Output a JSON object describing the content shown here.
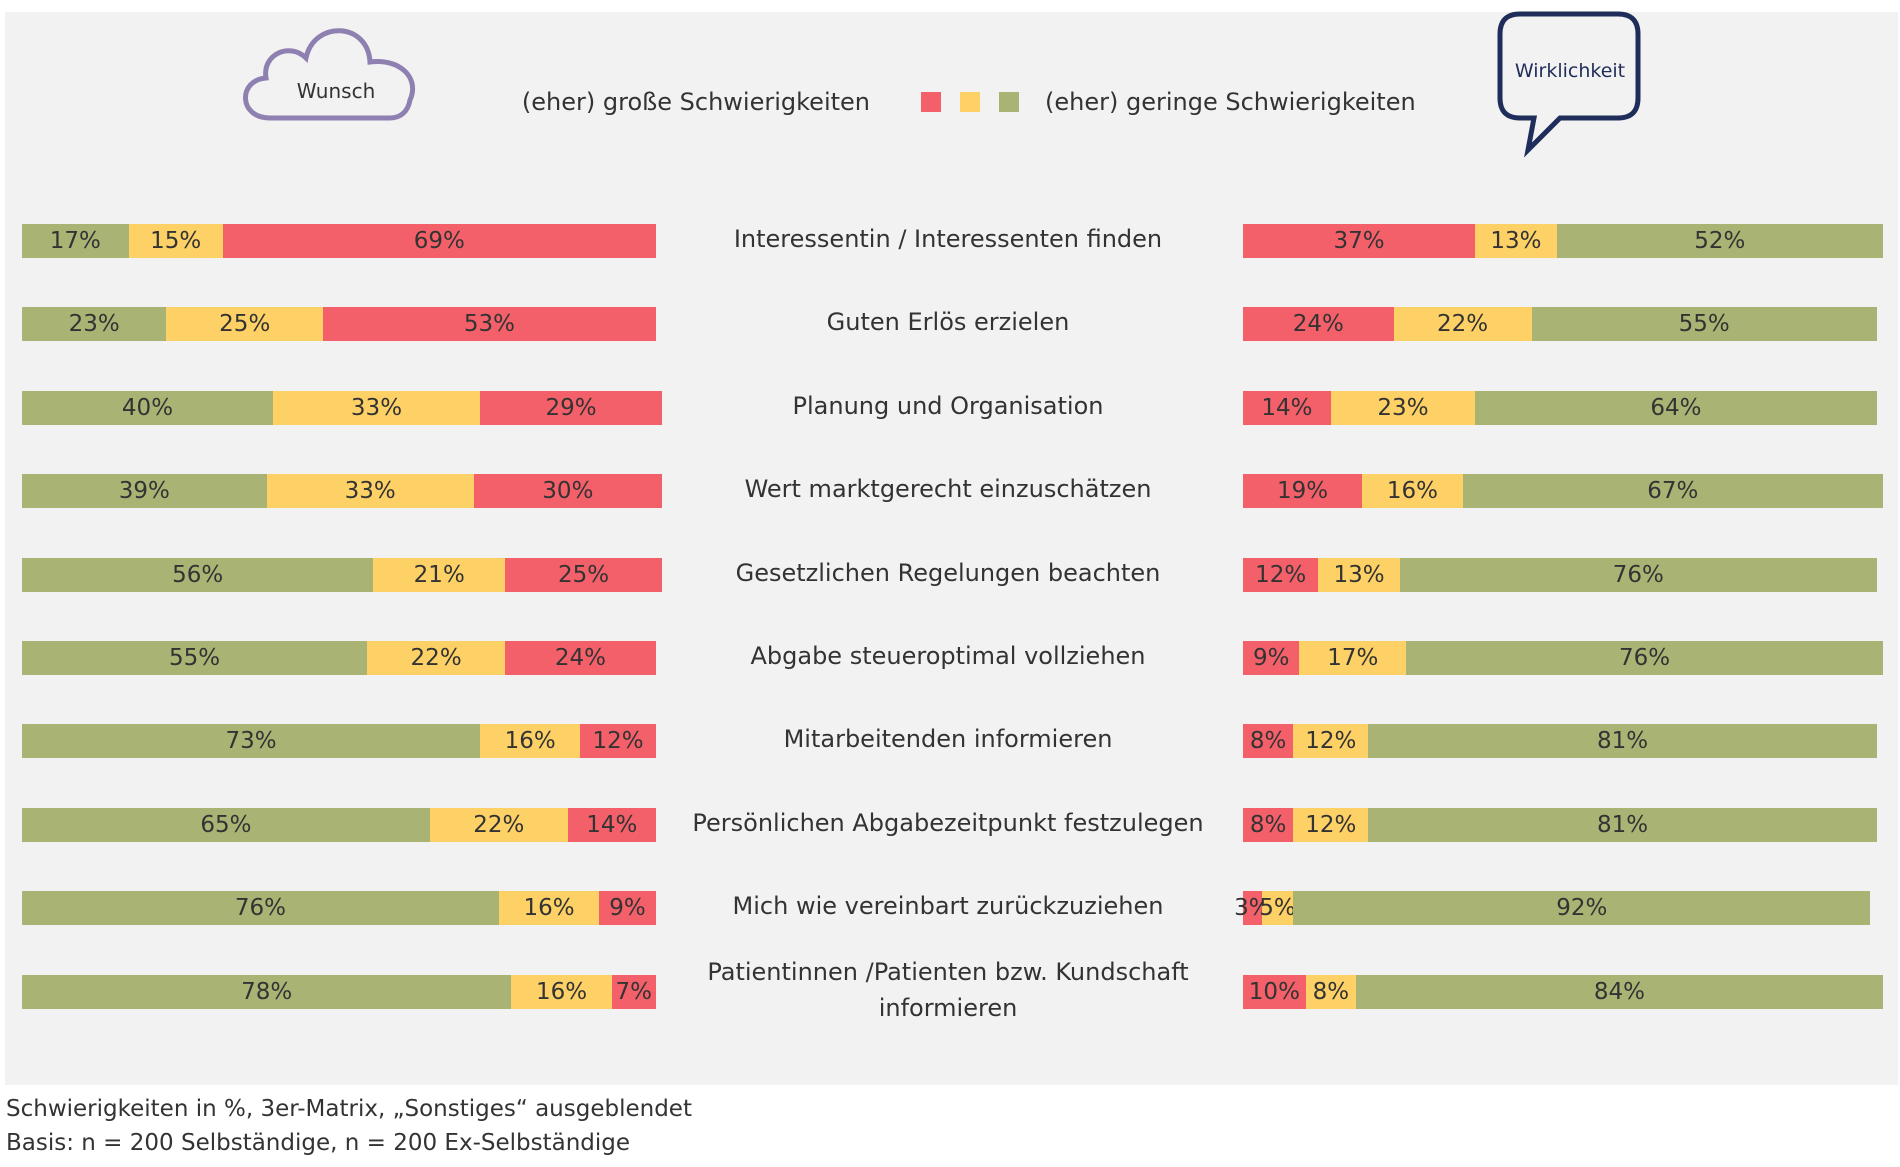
{
  "chart_data": {
    "type": "bar",
    "orientation": "horizontal",
    "stacked": true,
    "categories": [
      "Interessentin / Interessenten finden",
      "Guten Erlös erzielen",
      "Planung und Organisation",
      "Wert marktgerecht einzuschätzen",
      "Gesetzlichen Regelungen beachten",
      "Abgabe steueroptimal vollziehen",
      "Mitarbeitenden informieren",
      "Persönlichen Abgabezeitpunkt festzulegen",
      "Mich wie vereinbart zurückzuziehen",
      "Patientinnen /Patienten bzw. Kundschaft informieren"
    ],
    "legend": {
      "high": "(eher) große Schwierigkeiten",
      "low": "(eher) geringe Schwierigkeiten",
      "colors": [
        "#f4606a",
        "#fdd166",
        "#a9b474"
      ]
    },
    "panels": [
      {
        "name": "Wunsch",
        "series": [
          {
            "color": "#a9b474",
            "values": [
              17,
              23,
              40,
              39,
              56,
              55,
              73,
              65,
              76,
              78
            ],
            "value_labels": [
              "17%",
              "23%",
              "40%",
              "39%",
              "56%",
              "55%",
              "73%",
              "65%",
              "76%",
              "78%"
            ]
          },
          {
            "color": "#fdd166",
            "values": [
              15,
              25,
              33,
              33,
              21,
              22,
              16,
              22,
              16,
              16
            ],
            "value_labels": [
              "15%",
              "25%",
              "33%",
              "33%",
              "21%",
              "22%",
              "16%",
              "22%",
              "16%",
              "16%"
            ]
          },
          {
            "color": "#f4606a",
            "values": [
              69,
              53,
              29,
              30,
              25,
              24,
              12,
              14,
              9,
              7
            ],
            "value_labels": [
              "69%",
              "53%",
              "29%",
              "30%",
              "25%",
              "24%",
              "12%",
              "14%",
              "9%",
              "7%"
            ]
          }
        ]
      },
      {
        "name": "Wirklichkeit",
        "series": [
          {
            "color": "#f4606a",
            "values": [
              37,
              24,
              14,
              19,
              12,
              9,
              8,
              8,
              3,
              10
            ],
            "value_labels": [
              "37%",
              "24%",
              "14%",
              "19%",
              "12%",
              "9%",
              "8%",
              "8%",
              "3%",
              "10%"
            ]
          },
          {
            "color": "#fdd166",
            "values": [
              13,
              22,
              23,
              16,
              13,
              17,
              12,
              12,
              5,
              8
            ],
            "value_labels": [
              "13%",
              "22%",
              "23%",
              "16%",
              "13%",
              "17%",
              "12%",
              "12%",
              "5%",
              "8%"
            ]
          },
          {
            "color": "#a9b474",
            "values": [
              52,
              55,
              64,
              67,
              76,
              76,
              81,
              81,
              92,
              84
            ],
            "value_labels": [
              "52%",
              "55%",
              "64%",
              "67%",
              "76%",
              "76%",
              "81%",
              "81%",
              "92%",
              "84%"
            ]
          }
        ]
      }
    ]
  },
  "notes": [
    "Schwierigkeiten in %, 3er-Matrix, „Sonstiges“ ausgeblendet",
    "Basis: n = 200 Selbständige, n = 200 Ex-Selbständige"
  ]
}
